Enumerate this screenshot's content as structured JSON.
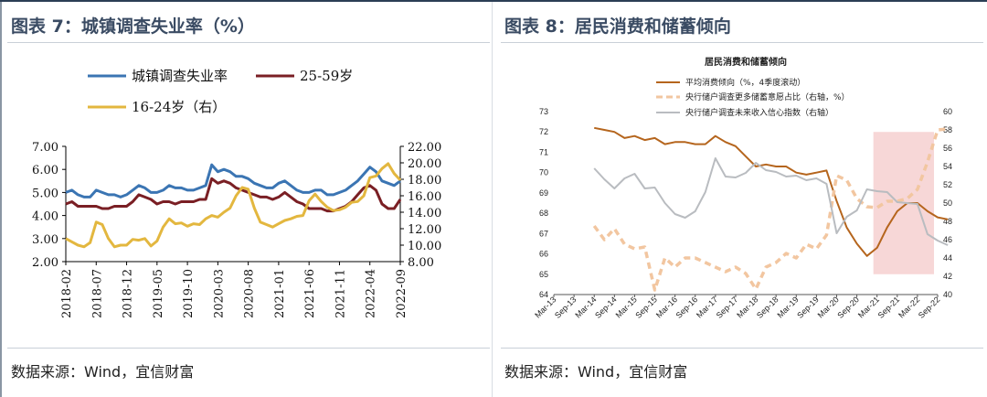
{
  "colors": {
    "unemployment_urban": "#3b75b3",
    "unemployment_25_59": "#7a1f24",
    "unemployment_16_24": "#e3b73f",
    "consumption": "#b5651d",
    "savings": "#f2c6a0",
    "confidence": "#b9bcc0",
    "highlight": "#f4c9c9"
  },
  "panels": {
    "left": {
      "title": "图表 7：城镇调查失业率（%）",
      "source": "数据来源：Wind，宜信财富"
    },
    "right": {
      "title": "图表 8：居民消费和储蓄倾向",
      "source": "数据来源：Wind，宜信财富"
    }
  },
  "chart_data": [
    {
      "type": "line",
      "title": "",
      "x": [
        "2018-02",
        "2018-03",
        "2018-04",
        "2018-05",
        "2018-06",
        "2018-07",
        "2018-08",
        "2018-09",
        "2018-10",
        "2018-11",
        "2018-12",
        "2019-01",
        "2019-02",
        "2019-03",
        "2019-04",
        "2019-05",
        "2019-06",
        "2019-07",
        "2019-08",
        "2019-09",
        "2019-10",
        "2019-11",
        "2019-12",
        "2020-01",
        "2020-02",
        "2020-03",
        "2020-04",
        "2020-05",
        "2020-06",
        "2020-07",
        "2020-08",
        "2020-09",
        "2020-10",
        "2020-11",
        "2020-12",
        "2021-01",
        "2021-02",
        "2021-03",
        "2021-04",
        "2021-05",
        "2021-06",
        "2021-07",
        "2021-08",
        "2021-09",
        "2021-10",
        "2021-11",
        "2021-12",
        "2022-01",
        "2022-02",
        "2022-03",
        "2022-04",
        "2022-05",
        "2022-06",
        "2022-07",
        "2022-08",
        "2022-09"
      ],
      "x_tick_labels": [
        "2018-02",
        "2018-07",
        "2018-12",
        "2019-05",
        "2019-10",
        "2020-03",
        "2020-08",
        "2021-01",
        "2021-06",
        "2021-11",
        "2022-04",
        "2022-09"
      ],
      "y_left": {
        "ylim": [
          2.0,
          7.0
        ],
        "ticks": [
          "2.00",
          "3.00",
          "4.00",
          "5.00",
          "6.00",
          "7.00"
        ]
      },
      "y_right": {
        "ylim": [
          8.0,
          22.0
        ],
        "ticks": [
          "8.00",
          "10.00",
          "12.00",
          "14.00",
          "16.00",
          "18.00",
          "20.00",
          "22.00"
        ]
      },
      "legend": [
        "城镇调查失业率",
        "25-59岁",
        "16-24岁（右）"
      ],
      "series": [
        {
          "name": "城镇调查失业率",
          "axis": "left",
          "values": [
            5.0,
            5.1,
            4.9,
            4.8,
            4.8,
            5.1,
            5.0,
            4.9,
            4.9,
            4.8,
            4.9,
            5.1,
            5.3,
            5.2,
            5.0,
            5.0,
            5.1,
            5.3,
            5.2,
            5.2,
            5.1,
            5.1,
            5.2,
            5.3,
            6.2,
            5.9,
            6.0,
            5.9,
            5.7,
            5.7,
            5.6,
            5.4,
            5.3,
            5.2,
            5.2,
            5.4,
            5.5,
            5.3,
            5.1,
            5.0,
            5.0,
            5.1,
            5.1,
            4.9,
            4.9,
            5.0,
            5.1,
            5.3,
            5.5,
            5.8,
            6.1,
            5.9,
            5.5,
            5.4,
            5.3,
            5.5
          ]
        },
        {
          "name": "25-59岁",
          "axis": "left",
          "values": [
            4.5,
            4.6,
            4.4,
            4.4,
            4.4,
            4.4,
            4.3,
            4.3,
            4.4,
            4.4,
            4.4,
            4.6,
            4.9,
            4.8,
            4.7,
            4.5,
            4.6,
            4.6,
            4.5,
            4.6,
            4.6,
            4.6,
            4.7,
            4.7,
            5.6,
            5.4,
            5.5,
            5.4,
            5.2,
            5.1,
            5.0,
            4.9,
            4.8,
            4.8,
            4.7,
            4.8,
            5.0,
            4.8,
            4.6,
            4.5,
            4.3,
            4.3,
            4.3,
            4.2,
            4.2,
            4.3,
            4.4,
            4.6,
            4.9,
            5.2,
            5.3,
            5.1,
            4.5,
            4.3,
            4.3,
            4.7
          ]
        },
        {
          "name": "16-24岁（右）",
          "axis": "right",
          "values": [
            10.8,
            10.4,
            10.0,
            9.8,
            10.3,
            12.8,
            12.5,
            10.8,
            9.8,
            10.0,
            10.0,
            10.7,
            10.6,
            10.8,
            9.9,
            10.5,
            12.2,
            13.2,
            12.6,
            12.7,
            12.3,
            12.6,
            12.5,
            13.2,
            13.6,
            13.4,
            14.0,
            14.5,
            16.0,
            17.0,
            16.8,
            14.5,
            12.8,
            12.5,
            12.2,
            12.6,
            13.0,
            13.2,
            13.5,
            13.6,
            15.4,
            16.2,
            15.3,
            14.6,
            14.2,
            14.3,
            14.6,
            15.2,
            15.3,
            16.0,
            18.2,
            18.4,
            19.3,
            19.9,
            18.7,
            17.9
          ]
        }
      ]
    },
    {
      "type": "line",
      "title": "居民消费和储蓄倾向",
      "x_tick_labels": [
        "Mar-13",
        "Sep-13",
        "Mar-14",
        "Sep-14",
        "Mar-15",
        "Sep-15",
        "Mar-16",
        "Sep-16",
        "Mar-17",
        "Sep-17",
        "Mar-18",
        "Sep-18",
        "Mar-19",
        "Sep-19",
        "Mar-20",
        "Sep-20",
        "Mar-21",
        "Sep-21",
        "Mar-22",
        "Sep-22"
      ],
      "y_left": {
        "ylim": [
          64,
          73
        ],
        "ticks": [
          "64",
          "65",
          "66",
          "67",
          "68",
          "69",
          "70",
          "71",
          "72",
          "73"
        ]
      },
      "y_right": {
        "ylim": [
          40,
          60
        ],
        "ticks": [
          "40",
          "42",
          "44",
          "46",
          "48",
          "50",
          "52",
          "54",
          "56",
          "58",
          "60"
        ]
      },
      "legend": [
        "平均消费倾向（%，4季度滚动）",
        "央行储户调查更多储蓄意愿占比（右轴，%）",
        "央行储户调查未来收入信心指数（右轴）"
      ],
      "highlight_range": [
        "Mar-21",
        "Sep-22"
      ],
      "series": [
        {
          "name": "平均消费倾向（%，4季度滚动）",
          "axis": "left",
          "style": "solid",
          "x": [
            2.0,
            2.5,
            3.0,
            3.5,
            4.0,
            4.5,
            5.0,
            5.5,
            6.0,
            6.5,
            7.0,
            7.5,
            8.0,
            8.5,
            9.0,
            9.5,
            10.0,
            10.5,
            11.0,
            11.5,
            12.0,
            12.5,
            13.0,
            13.5,
            14.0,
            14.5,
            15.0,
            15.5,
            16.0,
            16.5,
            17.0,
            17.5,
            18.0,
            18.5,
            19.0,
            19.5
          ],
          "values": [
            72.2,
            72.1,
            72.0,
            71.7,
            71.8,
            71.6,
            71.7,
            71.4,
            71.5,
            71.5,
            71.4,
            71.4,
            71.8,
            71.5,
            71.3,
            70.8,
            70.3,
            70.4,
            70.3,
            70.3,
            70.0,
            69.9,
            70.0,
            70.1,
            68.6,
            67.3,
            66.5,
            65.9,
            66.3,
            67.3,
            68.1,
            68.5,
            68.5,
            68.1,
            67.8,
            67.7
          ]
        },
        {
          "name": "央行储户调查更多储蓄意愿占比（右轴，%）",
          "axis": "right",
          "style": "dashed",
          "x": [
            2.0,
            2.5,
            3.0,
            3.5,
            4.0,
            4.5,
            5.0,
            5.5,
            6.0,
            6.5,
            7.0,
            7.5,
            8.0,
            8.5,
            9.0,
            9.5,
            10.0,
            10.5,
            11.0,
            11.5,
            12.0,
            12.5,
            13.0,
            13.5,
            14.0,
            14.5,
            15.0,
            15.5,
            16.0,
            16.5,
            17.0,
            17.5,
            18.0,
            18.5,
            19.0,
            19.5
          ],
          "values": [
            47.5,
            46.0,
            47.2,
            45.5,
            45.0,
            45.2,
            40.5,
            44.0,
            43.0,
            44.0,
            44.0,
            43.5,
            43.0,
            42.5,
            43.0,
            42.3,
            40.6,
            43.0,
            43.5,
            44.5,
            44.0,
            45.5,
            45.0,
            46.5,
            53.0,
            52.5,
            50.5,
            49.6,
            49.5,
            50.2,
            50.2,
            50.5,
            51.5,
            54.5,
            58.0,
            58.1
          ]
        },
        {
          "name": "央行储户调查未来收入信心指数（右轴）",
          "axis": "right",
          "style": "solid",
          "x": [
            2.0,
            2.5,
            3.0,
            3.5,
            4.0,
            4.5,
            5.0,
            5.5,
            6.0,
            6.5,
            7.0,
            7.5,
            8.0,
            8.5,
            9.0,
            9.5,
            10.0,
            10.5,
            11.0,
            11.5,
            12.0,
            12.5,
            13.0,
            13.5,
            14.0,
            14.5,
            15.0,
            15.5,
            16.0,
            16.5,
            17.0,
            17.5,
            18.0,
            18.5,
            19.0,
            19.5
          ],
          "values": [
            53.8,
            52.6,
            51.6,
            52.7,
            53.2,
            51.6,
            51.7,
            50.0,
            48.8,
            48.4,
            49.1,
            51.2,
            54.9,
            52.9,
            52.8,
            53.3,
            54.4,
            53.6,
            53.4,
            52.9,
            53.0,
            52.5,
            52.7,
            52.1,
            46.7,
            48.5,
            49.2,
            51.5,
            51.3,
            51.2,
            50.1,
            50.0,
            49.9,
            46.6,
            45.9,
            45.4
          ]
        }
      ]
    }
  ]
}
